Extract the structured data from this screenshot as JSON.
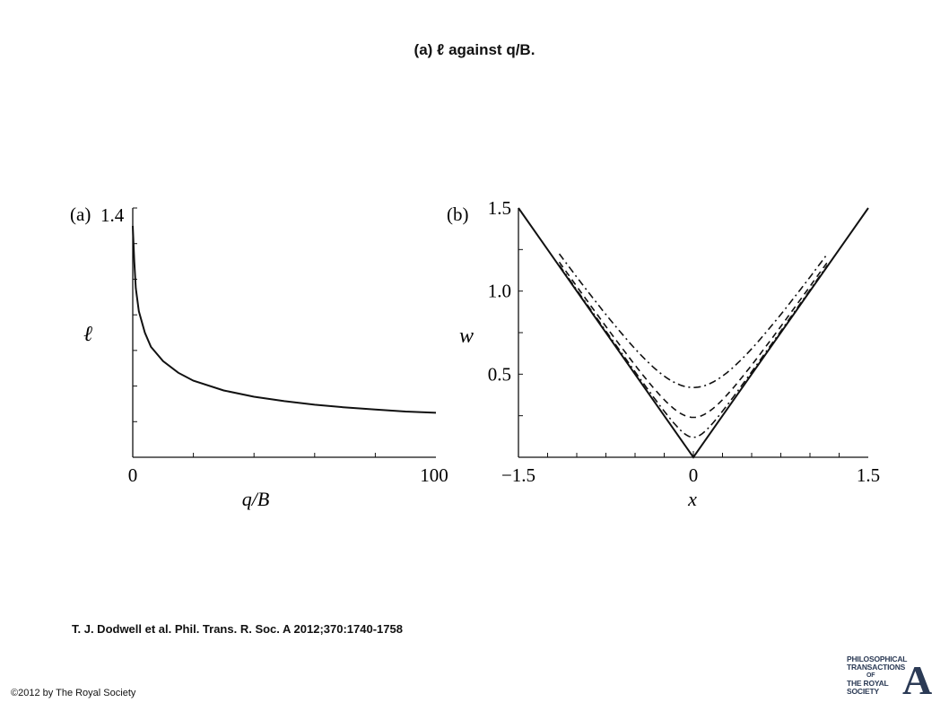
{
  "slide": {
    "title": "(a) ℓ against q/B.",
    "citation": "T. J. Dodwell et al. Phil. Trans. R. Soc. A 2012;370:1740-1758",
    "copyright": "©2012 by The Royal Society",
    "logo": {
      "lines": [
        "PHILOSOPHICAL",
        "TRANSACTIONS",
        "OF",
        "THE ROYAL",
        "SOCIETY"
      ],
      "letter": "A"
    }
  },
  "chart_data": [
    {
      "type": "line",
      "panel_label": "(a)",
      "xlabel": "q/B",
      "ylabel": "ℓ",
      "xlim": [
        0,
        100
      ],
      "ylim": [
        0,
        1.4
      ],
      "x_ticks": [
        0,
        100
      ],
      "y_ticks": [
        1.4
      ],
      "series": [
        {
          "style": "solid",
          "points": [
            [
              0,
              1.3
            ],
            [
              0.5,
              1.1
            ],
            [
              1,
              0.95
            ],
            [
              2,
              0.82
            ],
            [
              4,
              0.7
            ],
            [
              6,
              0.62
            ],
            [
              10,
              0.54
            ],
            [
              15,
              0.475
            ],
            [
              20,
              0.43
            ],
            [
              30,
              0.375
            ],
            [
              40,
              0.34
            ],
            [
              50,
              0.315
            ],
            [
              60,
              0.295
            ],
            [
              70,
              0.28
            ],
            [
              80,
              0.268
            ],
            [
              90,
              0.257
            ],
            [
              100,
              0.25
            ]
          ]
        }
      ]
    },
    {
      "type": "line",
      "panel_label": "(b)",
      "xlabel": "x",
      "ylabel": "w",
      "xlim": [
        -1.5,
        1.5
      ],
      "ylim": [
        0,
        1.5
      ],
      "x_ticks": [
        -1.5,
        0,
        1.5
      ],
      "x_tick_labels": [
        "−1.5",
        "0",
        "1.5"
      ],
      "y_ticks": [
        0.5,
        1.0,
        1.5
      ],
      "y_tick_labels": [
        "0.5",
        "1.0",
        "1.5"
      ],
      "series": [
        {
          "style": "solid",
          "min_w": 0.0
        },
        {
          "style": "dashdot",
          "min_w": 0.42
        },
        {
          "style": "dashed",
          "min_w": 0.24
        },
        {
          "style": "dashdot",
          "min_w": 0.12
        }
      ]
    }
  ]
}
